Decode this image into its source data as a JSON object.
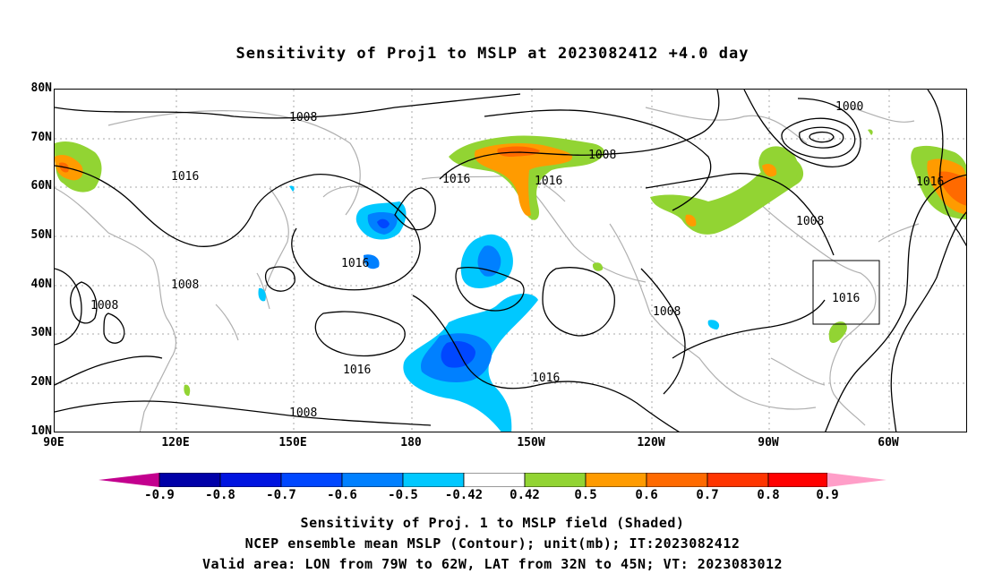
{
  "title": "Sensitivity of Proj1 to MSLP at 2023082412 +4.0 day",
  "lat_labels": [
    "80N",
    "70N",
    "60N",
    "50N",
    "40N",
    "30N",
    "20N",
    "10N"
  ],
  "lon_labels": [
    "90E",
    "120E",
    "150E",
    "180",
    "150W",
    "120W",
    "90W",
    "60W"
  ],
  "contour_labels": [
    "1008",
    "1016",
    "1008",
    "1008",
    "1016",
    "1016",
    "1008",
    "1000",
    "1008",
    "1016",
    "1016",
    "1016",
    "1008",
    "1016",
    "1016",
    "1008"
  ],
  "colorbar": {
    "labels": [
      "-0.9",
      "-0.8",
      "-0.7",
      "-0.6",
      "-0.5",
      "-0.42",
      "0.42",
      "0.5",
      "0.6",
      "0.7",
      "0.8",
      "0.9"
    ],
    "colors": [
      "#c3008e",
      "#0000a8",
      "#0014e0",
      "#0047ff",
      "#0080ff",
      "#00c8ff",
      "#ffffff",
      "#92d433",
      "#ff9b00",
      "#ff6a00",
      "#ff3500",
      "#ff0000",
      "#ff9ec8"
    ]
  },
  "caption": [
    "Sensitivity of Proj. 1 to MSLP field (Shaded)",
    "NCEP ensemble mean MSLP (Contour); unit(mb); IT:2023082412",
    "Valid area: LON from 79W to 62W, LAT from 32N to 45N; VT: 2023083012"
  ]
}
